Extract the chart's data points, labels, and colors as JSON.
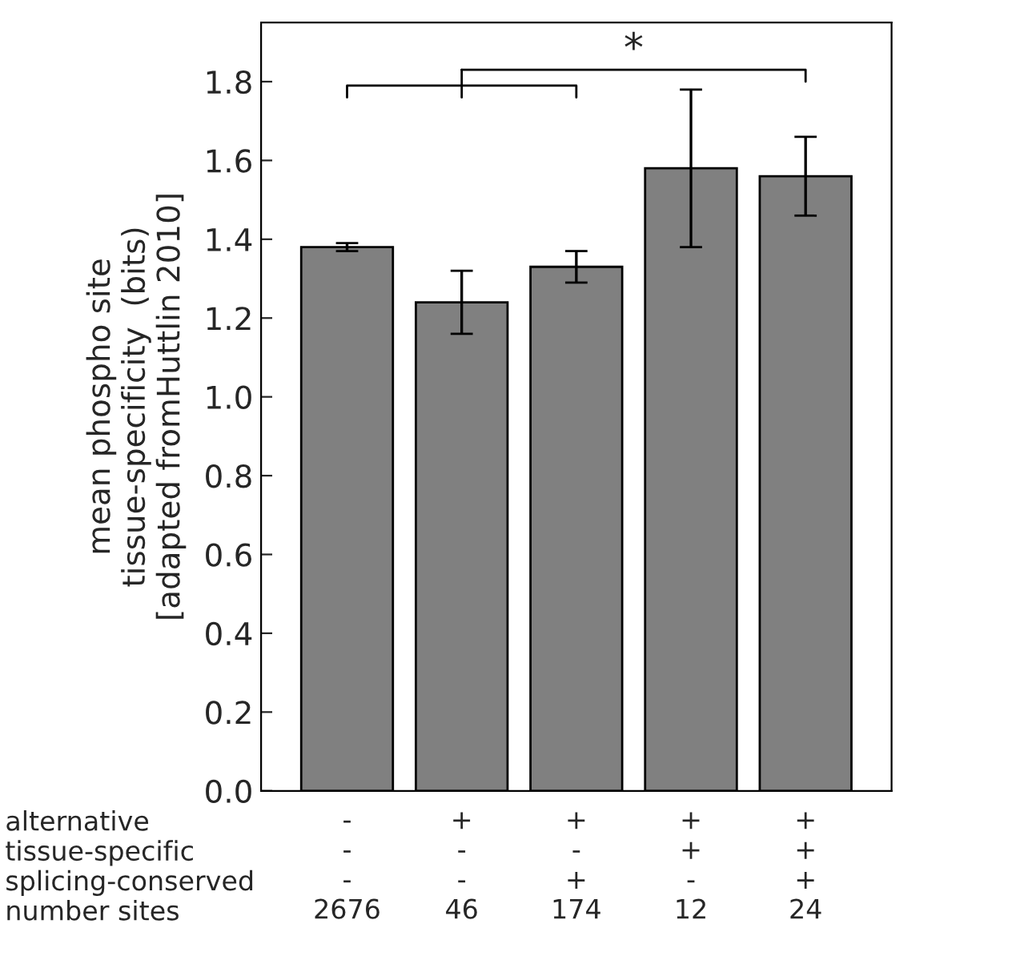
{
  "chart_data": {
    "type": "bar",
    "categories": [
      "-\n-\n-\n2676",
      "+\n-\n-\n46",
      "+\n-\n+\n174",
      "+\n+\n-\n12",
      "+\n+\n+\n24"
    ],
    "values": [
      1.38,
      1.24,
      1.33,
      1.58,
      1.56
    ],
    "errors": [
      0.01,
      0.08,
      0.04,
      0.2,
      0.1
    ],
    "color": "#808080",
    "ylabel": "mean phospho site\ntissue-specificity  (bits)\n[adapted fromHuttlin 2010]",
    "ylim": [
      0,
      1.95
    ],
    "yticks": [
      {
        "value": 0,
        "label": "0.0"
      },
      {
        "value": 0.2,
        "label": "0.2"
      },
      {
        "value": 0.4,
        "label": "0.4"
      },
      {
        "value": 0.6,
        "label": "0.6"
      },
      {
        "value": 0.8,
        "label": "0.8"
      },
      {
        "value": 1.0,
        "label": "1.0"
      },
      {
        "value": 1.2,
        "label": "1.2"
      },
      {
        "value": 1.4,
        "label": "1.4"
      },
      {
        "value": 1.6,
        "label": "1.6"
      },
      {
        "value": 1.8,
        "label": "1.8"
      }
    ],
    "annotations": [
      "alternative",
      "tissue-specific",
      "splicing-conserved",
      "number sites",
      "*"
    ]
  }
}
